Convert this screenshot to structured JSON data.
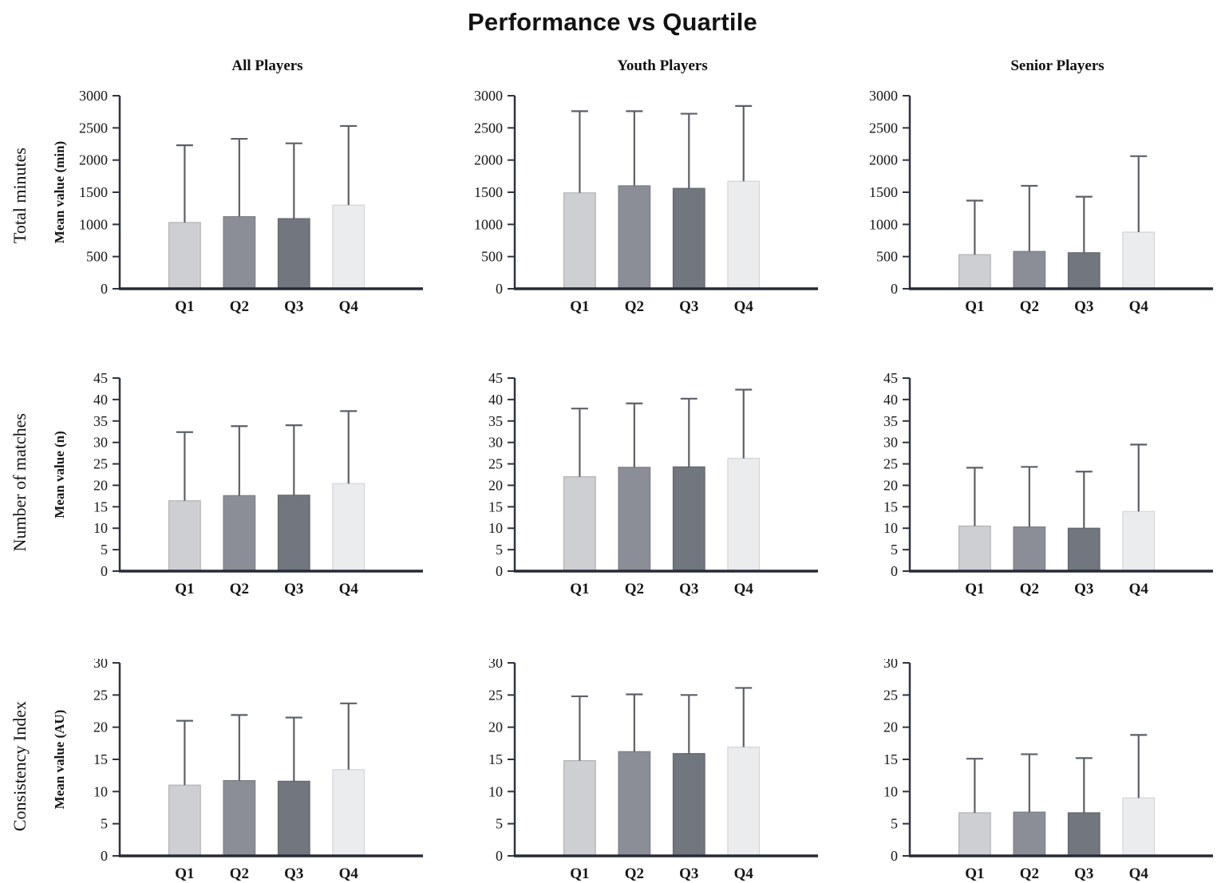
{
  "title": "Performance vs Quartile",
  "column_headers": [
    "All Players",
    "Youth Players",
    "Senior Players"
  ],
  "row_labels": [
    "Total minutes",
    "Number of matches",
    "Consistency Index"
  ],
  "style": {
    "bar_fills": [
      "#cdcfd2",
      "#8b8e96",
      "#72767e",
      "#ebecee"
    ],
    "bar_strokes": [
      "#b0b2b6",
      "#7a7d85",
      "#63666e",
      "#d2d4d7"
    ],
    "error_bar_color": "#5b6068",
    "axis_color": "#2e3440",
    "baseline_color": "#262b36",
    "text_color": "#161616"
  },
  "chart_data": [
    {
      "type": "bar",
      "metric": "Total minutes",
      "group": "All Players",
      "ylabel": "Mean value (min)",
      "categories": [
        "Q1",
        "Q2",
        "Q3",
        "Q4"
      ],
      "values": [
        1030,
        1120,
        1090,
        1300
      ],
      "error_top_values": [
        2230,
        2330,
        2260,
        2530
      ],
      "ylim": [
        0,
        3000
      ],
      "ystep": 500,
      "grid": false,
      "legend": false
    },
    {
      "type": "bar",
      "metric": "Total minutes",
      "group": "Youth Players",
      "ylabel": "",
      "categories": [
        "Q1",
        "Q2",
        "Q3",
        "Q4"
      ],
      "values": [
        1490,
        1600,
        1560,
        1670
      ],
      "error_top_values": [
        2760,
        2760,
        2720,
        2840
      ],
      "ylim": [
        0,
        3000
      ],
      "ystep": 500,
      "grid": false,
      "legend": false
    },
    {
      "type": "bar",
      "metric": "Total minutes",
      "group": "Senior Players",
      "ylabel": "",
      "categories": [
        "Q1",
        "Q2",
        "Q3",
        "Q4"
      ],
      "values": [
        530,
        580,
        560,
        880
      ],
      "error_top_values": [
        1370,
        1600,
        1430,
        2060
      ],
      "ylim": [
        0,
        3000
      ],
      "ystep": 500,
      "grid": false,
      "legend": false
    },
    {
      "type": "bar",
      "metric": "Number of matches",
      "group": "All Players",
      "ylabel": "Mean value (n)",
      "categories": [
        "Q1",
        "Q2",
        "Q3",
        "Q4"
      ],
      "values": [
        16.4,
        17.6,
        17.7,
        20.4
      ],
      "error_top_values": [
        32.4,
        33.8,
        34.0,
        37.3
      ],
      "ylim": [
        0,
        45
      ],
      "ystep": 5,
      "grid": false,
      "legend": false
    },
    {
      "type": "bar",
      "metric": "Number of matches",
      "group": "Youth Players",
      "ylabel": "",
      "categories": [
        "Q1",
        "Q2",
        "Q3",
        "Q4"
      ],
      "values": [
        22.0,
        24.2,
        24.3,
        26.3
      ],
      "error_top_values": [
        37.9,
        39.1,
        40.2,
        42.3
      ],
      "ylim": [
        0,
        45
      ],
      "ystep": 5,
      "grid": false,
      "legend": false
    },
    {
      "type": "bar",
      "metric": "Number of matches",
      "group": "Senior Players",
      "ylabel": "",
      "categories": [
        "Q1",
        "Q2",
        "Q3",
        "Q4"
      ],
      "values": [
        10.5,
        10.3,
        10.0,
        13.9
      ],
      "error_top_values": [
        24.1,
        24.3,
        23.2,
        29.5
      ],
      "ylim": [
        0,
        45
      ],
      "ystep": 5,
      "grid": false,
      "legend": false
    },
    {
      "type": "bar",
      "metric": "Consistency Index",
      "group": "All Players",
      "ylabel": "Mean value (AU)",
      "categories": [
        "Q1",
        "Q2",
        "Q3",
        "Q4"
      ],
      "values": [
        11.0,
        11.7,
        11.6,
        13.4
      ],
      "error_top_values": [
        21.0,
        21.9,
        21.5,
        23.7
      ],
      "ylim": [
        0,
        30
      ],
      "ystep": 5,
      "grid": false,
      "legend": false
    },
    {
      "type": "bar",
      "metric": "Consistency Index",
      "group": "Youth Players",
      "ylabel": "",
      "categories": [
        "Q1",
        "Q2",
        "Q3",
        "Q4"
      ],
      "values": [
        14.8,
        16.2,
        15.9,
        16.9
      ],
      "error_top_values": [
        24.8,
        25.1,
        25.0,
        26.1
      ],
      "ylim": [
        0,
        30
      ],
      "ystep": 5,
      "grid": false,
      "legend": false
    },
    {
      "type": "bar",
      "metric": "Consistency Index",
      "group": "Senior Players",
      "ylabel": "",
      "categories": [
        "Q1",
        "Q2",
        "Q3",
        "Q4"
      ],
      "values": [
        6.7,
        6.8,
        6.7,
        9.0
      ],
      "error_top_values": [
        15.1,
        15.8,
        15.2,
        18.8
      ],
      "ylim": [
        0,
        30
      ],
      "ystep": 5,
      "grid": false,
      "legend": false
    }
  ]
}
